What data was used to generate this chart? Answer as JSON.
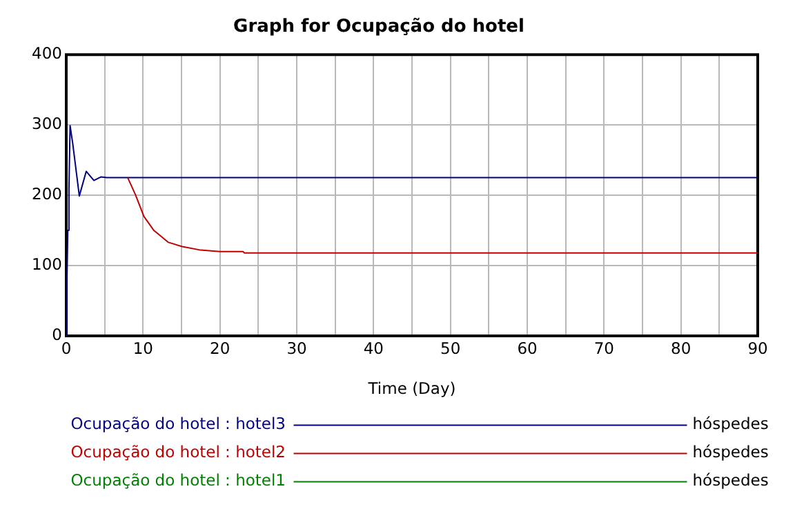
{
  "chart_data": {
    "type": "line",
    "title": "Graph for Ocupação do hotel",
    "xlabel": "Time (Day)",
    "xlim": [
      0,
      90
    ],
    "ylim": [
      0,
      400
    ],
    "xticks": [
      0,
      {
        "value": 5,
        "label": null
      },
      10,
      {
        "value": 15,
        "label": null
      },
      20,
      {
        "value": 25,
        "label": null
      },
      30,
      {
        "value": 35,
        "label": null
      },
      40,
      {
        "value": 45,
        "label": null
      },
      50,
      {
        "value": 55,
        "label": null
      },
      60,
      {
        "value": 65,
        "label": null
      },
      70,
      {
        "value": 75,
        "label": null
      },
      80,
      {
        "value": 85,
        "label": null
      },
      90
    ],
    "yticks": [
      0,
      100,
      200,
      300,
      400
    ],
    "grid": true,
    "legend": "bottom",
    "marker": "none",
    "line_style": "solid",
    "annotations": [
      "hóspedes",
      "hóspedes",
      "hóspedes"
    ],
    "series": [
      {
        "name": "Ocupação do hotel : hotel3",
        "color": "#000080",
        "x": [
          0,
          0.1,
          0.2,
          0.35,
          0.5,
          0.85,
          1.7,
          2.6,
          3.6,
          4.5,
          5.3,
          90
        ],
        "values": [
          0,
          84,
          150,
          209,
          299,
          273,
          199,
          234,
          221,
          226,
          225,
          225
        ]
      },
      {
        "name": "Ocupação do hotel : hotel2",
        "color": "#c00000",
        "x": [
          8,
          9,
          10.1,
          11.4,
          13.3,
          15.1,
          17.5,
          20,
          23,
          23.2,
          90
        ],
        "values": [
          225,
          201,
          170,
          150,
          133,
          127,
          122,
          120,
          120,
          118,
          118
        ]
      },
      {
        "name": "Ocupação do hotel : hotel1",
        "color": "#008000"
      }
    ]
  }
}
